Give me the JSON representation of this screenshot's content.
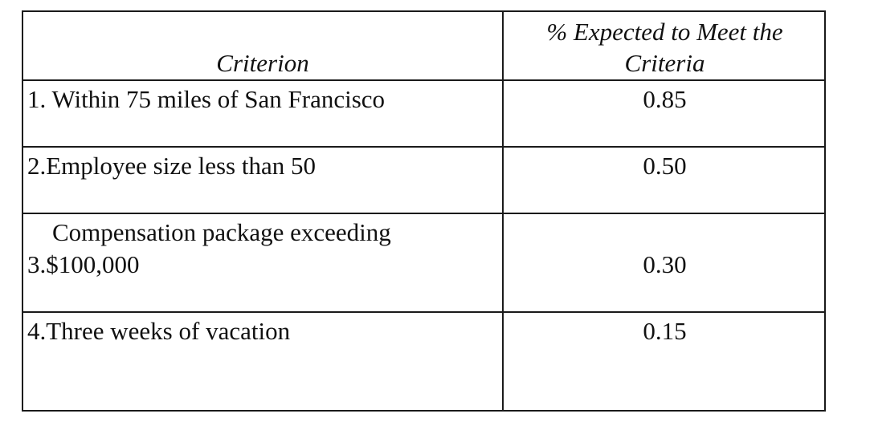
{
  "table": {
    "headers": {
      "criterion": "Criterion",
      "expected_line1": "% Expected to Meet the",
      "expected_line2": "Criteria"
    },
    "rows": [
      {
        "criterion_line1": "1. Within 75 miles of San Francisco",
        "criterion_line2": "",
        "value": "0.85"
      },
      {
        "criterion_line1": "2.Employee size less than 50",
        "criterion_line2": "",
        "value": "0.50"
      },
      {
        "criterion_line1": "Compensation package exceeding",
        "criterion_line2": "3.$100,000",
        "value": "0.30"
      },
      {
        "criterion_line1": "4.Three weeks of vacation",
        "criterion_line2": "",
        "value": "0.15"
      }
    ]
  }
}
